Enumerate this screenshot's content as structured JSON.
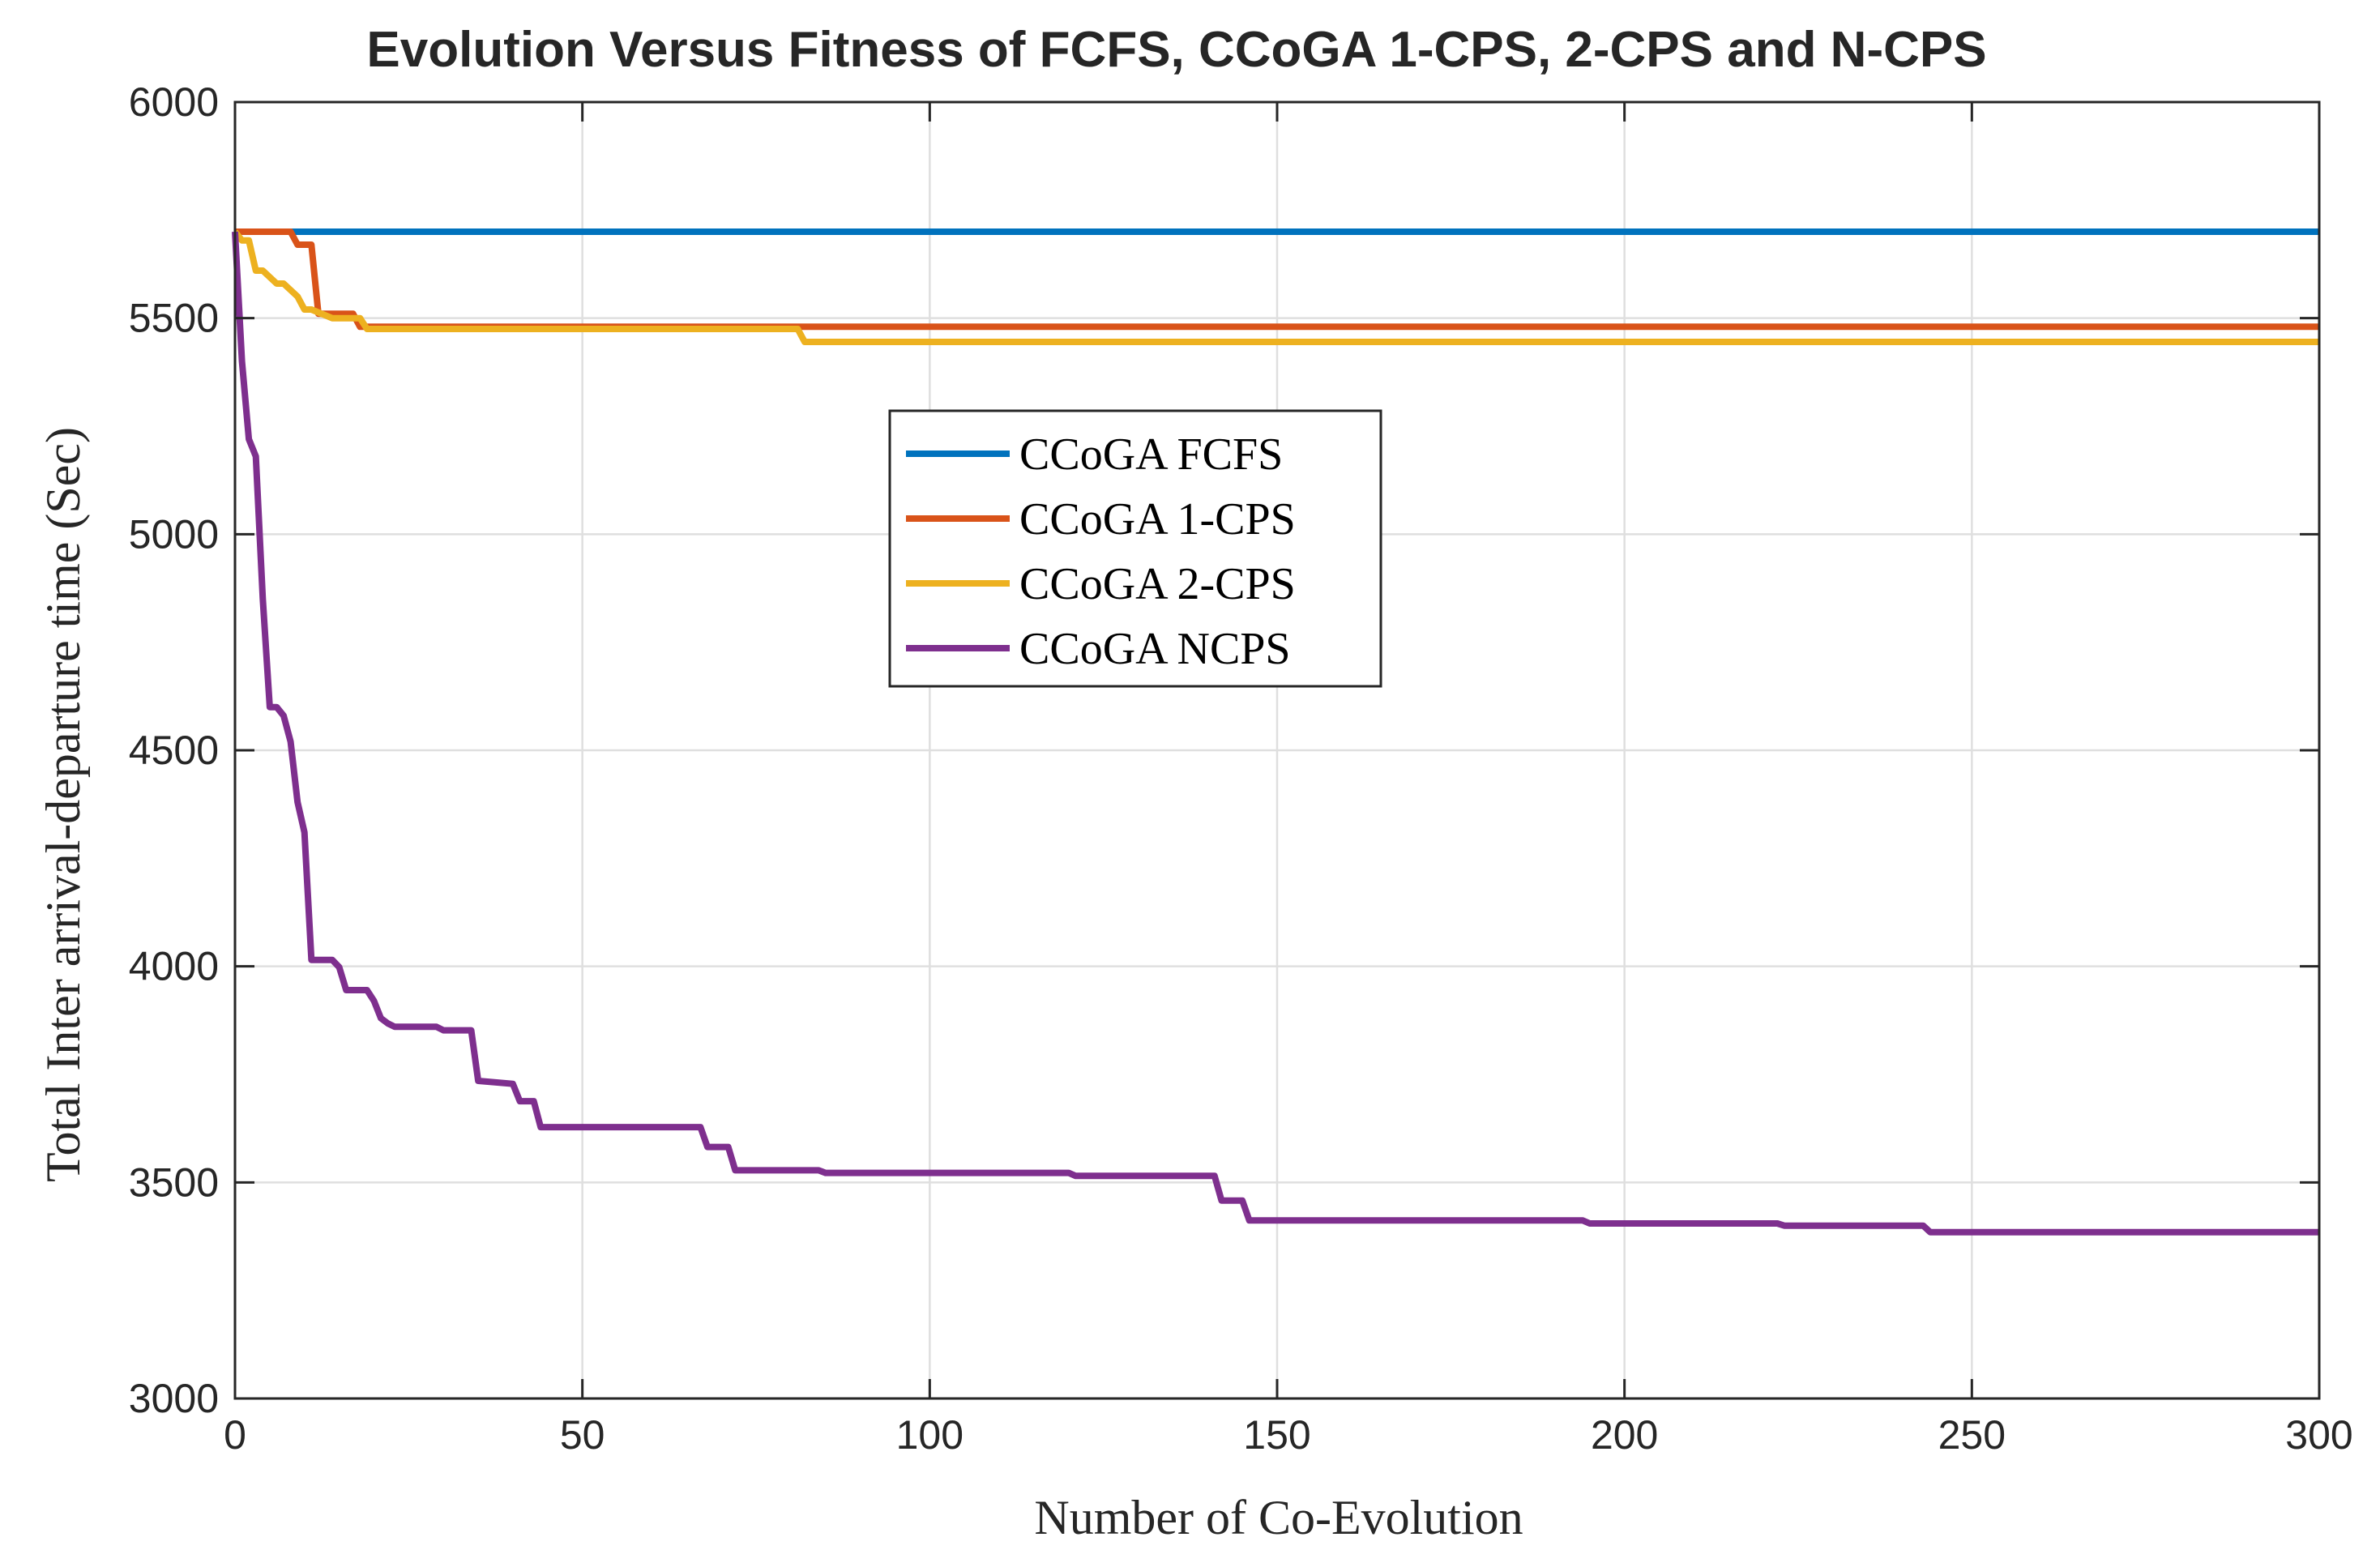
{
  "chart_data": {
    "type": "line",
    "title": "Evolution Versus Fitness of FCFS, CCoGA 1-CPS, 2-CPS and N-CPS",
    "xlabel": "Number of Co-Evolution",
    "ylabel": "Total Inter arrival-departure time (Sec)",
    "xlim": [
      0,
      300
    ],
    "ylim": [
      3000,
      6000
    ],
    "xticks": [
      0,
      50,
      100,
      150,
      200,
      250,
      300
    ],
    "yticks": [
      3000,
      3500,
      4000,
      4500,
      5000,
      5500,
      6000
    ],
    "grid": true,
    "legend_position": "center",
    "series": [
      {
        "name": "CCoGA FCFS",
        "color": "#0072BD",
        "x": [
          0,
          300
        ],
        "y": [
          5700,
          5700
        ]
      },
      {
        "name": "CCoGA 1-CPS",
        "color": "#D95319",
        "x": [
          0,
          8,
          9,
          11,
          12,
          17,
          18,
          19,
          300
        ],
        "y": [
          5700,
          5700,
          5670,
          5670,
          5510,
          5510,
          5480,
          5480,
          5480
        ]
      },
      {
        "name": "CCoGA 2-CPS",
        "color": "#EDB120",
        "x": [
          0,
          1,
          2,
          3,
          4,
          6,
          7,
          9,
          10,
          11,
          14,
          15,
          18,
          19,
          81,
          82,
          300
        ],
        "y": [
          5700,
          5680,
          5680,
          5610,
          5610,
          5580,
          5580,
          5550,
          5520,
          5520,
          5500,
          5500,
          5500,
          5475,
          5475,
          5445,
          5445
        ]
      },
      {
        "name": "CCoGA NCPS",
        "color": "#7E2F8E",
        "x": [
          0,
          1,
          2,
          3,
          4,
          5,
          6,
          7,
          8,
          9,
          10,
          11,
          14,
          15,
          16,
          19,
          20,
          21,
          22,
          23,
          29,
          30,
          34,
          35,
          40,
          41,
          43,
          44,
          67,
          68,
          71,
          72,
          84,
          85,
          120,
          121,
          141,
          142,
          145,
          146,
          194,
          195,
          222,
          223,
          243,
          244,
          300
        ],
        "y": [
          5700,
          5400,
          5220,
          5180,
          4850,
          4600,
          4600,
          4580,
          4520,
          4380,
          4310,
          4015,
          4015,
          3998,
          3945,
          3945,
          3920,
          3880,
          3868,
          3860,
          3860,
          3852,
          3852,
          3735,
          3728,
          3688,
          3688,
          3628,
          3628,
          3582,
          3582,
          3528,
          3528,
          3522,
          3522,
          3515,
          3515,
          3458,
          3458,
          3412,
          3412,
          3405,
          3405,
          3400,
          3400,
          3385,
          3385
        ]
      }
    ]
  }
}
